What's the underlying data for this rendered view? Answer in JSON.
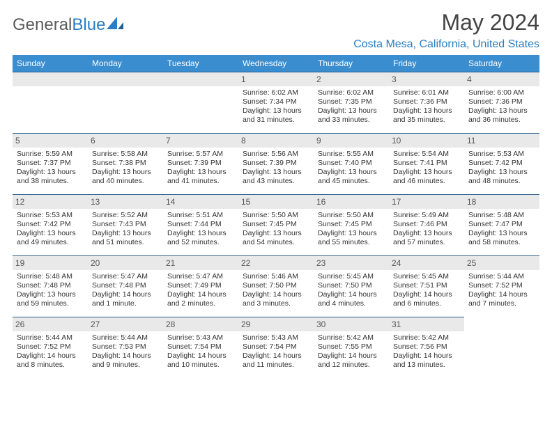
{
  "logo": {
    "part1": "General",
    "part2": "Blue"
  },
  "title": "May 2024",
  "location": "Costa Mesa, California, United States",
  "colors": {
    "headbar": "#3a8dcf",
    "accent": "#2b7ec2",
    "numrow": "#e9e9e9",
    "border": "#2b5f8c",
    "bodytext": "#333333",
    "titletext": "#444444"
  },
  "day_labels": [
    "Sunday",
    "Monday",
    "Tuesday",
    "Wednesday",
    "Thursday",
    "Friday",
    "Saturday"
  ],
  "leading_blanks": 3,
  "days": [
    {
      "n": 1,
      "sr": "6:02 AM",
      "ss": "7:34 PM",
      "dl": "13 hours and 31 minutes."
    },
    {
      "n": 2,
      "sr": "6:02 AM",
      "ss": "7:35 PM",
      "dl": "13 hours and 33 minutes."
    },
    {
      "n": 3,
      "sr": "6:01 AM",
      "ss": "7:36 PM",
      "dl": "13 hours and 35 minutes."
    },
    {
      "n": 4,
      "sr": "6:00 AM",
      "ss": "7:36 PM",
      "dl": "13 hours and 36 minutes."
    },
    {
      "n": 5,
      "sr": "5:59 AM",
      "ss": "7:37 PM",
      "dl": "13 hours and 38 minutes."
    },
    {
      "n": 6,
      "sr": "5:58 AM",
      "ss": "7:38 PM",
      "dl": "13 hours and 40 minutes."
    },
    {
      "n": 7,
      "sr": "5:57 AM",
      "ss": "7:39 PM",
      "dl": "13 hours and 41 minutes."
    },
    {
      "n": 8,
      "sr": "5:56 AM",
      "ss": "7:39 PM",
      "dl": "13 hours and 43 minutes."
    },
    {
      "n": 9,
      "sr": "5:55 AM",
      "ss": "7:40 PM",
      "dl": "13 hours and 45 minutes."
    },
    {
      "n": 10,
      "sr": "5:54 AM",
      "ss": "7:41 PM",
      "dl": "13 hours and 46 minutes."
    },
    {
      "n": 11,
      "sr": "5:53 AM",
      "ss": "7:42 PM",
      "dl": "13 hours and 48 minutes."
    },
    {
      "n": 12,
      "sr": "5:53 AM",
      "ss": "7:42 PM",
      "dl": "13 hours and 49 minutes."
    },
    {
      "n": 13,
      "sr": "5:52 AM",
      "ss": "7:43 PM",
      "dl": "13 hours and 51 minutes."
    },
    {
      "n": 14,
      "sr": "5:51 AM",
      "ss": "7:44 PM",
      "dl": "13 hours and 52 minutes."
    },
    {
      "n": 15,
      "sr": "5:50 AM",
      "ss": "7:45 PM",
      "dl": "13 hours and 54 minutes."
    },
    {
      "n": 16,
      "sr": "5:50 AM",
      "ss": "7:45 PM",
      "dl": "13 hours and 55 minutes."
    },
    {
      "n": 17,
      "sr": "5:49 AM",
      "ss": "7:46 PM",
      "dl": "13 hours and 57 minutes."
    },
    {
      "n": 18,
      "sr": "5:48 AM",
      "ss": "7:47 PM",
      "dl": "13 hours and 58 minutes."
    },
    {
      "n": 19,
      "sr": "5:48 AM",
      "ss": "7:48 PM",
      "dl": "13 hours and 59 minutes."
    },
    {
      "n": 20,
      "sr": "5:47 AM",
      "ss": "7:48 PM",
      "dl": "14 hours and 1 minute."
    },
    {
      "n": 21,
      "sr": "5:47 AM",
      "ss": "7:49 PM",
      "dl": "14 hours and 2 minutes."
    },
    {
      "n": 22,
      "sr": "5:46 AM",
      "ss": "7:50 PM",
      "dl": "14 hours and 3 minutes."
    },
    {
      "n": 23,
      "sr": "5:45 AM",
      "ss": "7:50 PM",
      "dl": "14 hours and 4 minutes."
    },
    {
      "n": 24,
      "sr": "5:45 AM",
      "ss": "7:51 PM",
      "dl": "14 hours and 6 minutes."
    },
    {
      "n": 25,
      "sr": "5:44 AM",
      "ss": "7:52 PM",
      "dl": "14 hours and 7 minutes."
    },
    {
      "n": 26,
      "sr": "5:44 AM",
      "ss": "7:52 PM",
      "dl": "14 hours and 8 minutes."
    },
    {
      "n": 27,
      "sr": "5:44 AM",
      "ss": "7:53 PM",
      "dl": "14 hours and 9 minutes."
    },
    {
      "n": 28,
      "sr": "5:43 AM",
      "ss": "7:54 PM",
      "dl": "14 hours and 10 minutes."
    },
    {
      "n": 29,
      "sr": "5:43 AM",
      "ss": "7:54 PM",
      "dl": "14 hours and 11 minutes."
    },
    {
      "n": 30,
      "sr": "5:42 AM",
      "ss": "7:55 PM",
      "dl": "14 hours and 12 minutes."
    },
    {
      "n": 31,
      "sr": "5:42 AM",
      "ss": "7:56 PM",
      "dl": "14 hours and 13 minutes."
    }
  ],
  "labels": {
    "sunrise": "Sunrise:",
    "sunset": "Sunset:",
    "daylight": "Daylight:"
  }
}
